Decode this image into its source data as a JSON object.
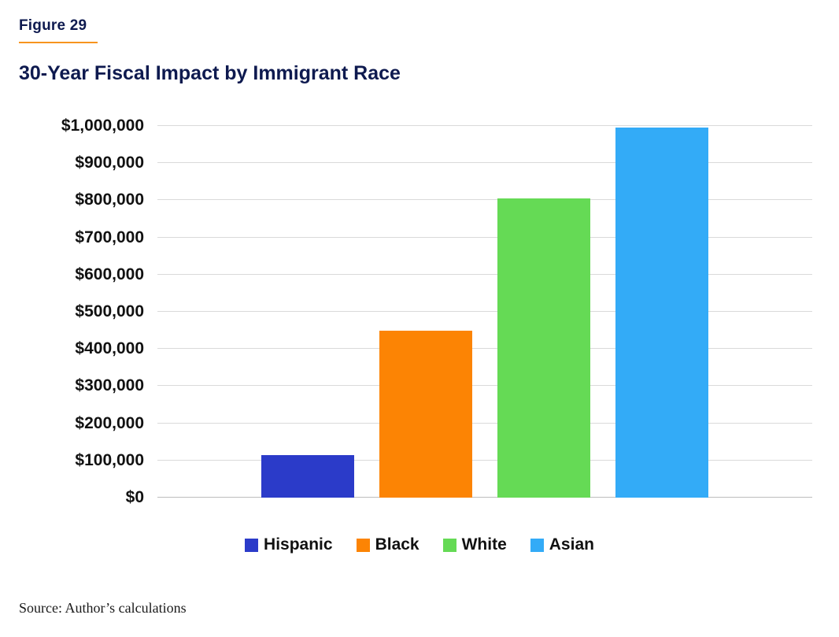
{
  "figure": {
    "label": "Figure 29",
    "title": "30-Year Fiscal Impact by Immigrant Race"
  },
  "source": "Source: Author’s calculations",
  "colors": {
    "heading_navy": "#0e1a4f",
    "accent_orange": "#f7941e",
    "gridline": "#dadada",
    "axis_line": "#bdbdbd"
  },
  "chart_data": {
    "type": "bar",
    "title": "30-Year Fiscal Impact by Immigrant Race",
    "categories": [
      "Hispanic",
      "Black",
      "White",
      "Asian"
    ],
    "values": [
      115000,
      450000,
      805000,
      995000
    ],
    "colors": [
      "#2b3bc9",
      "#fc8404",
      "#65da55",
      "#33abf7"
    ],
    "xlabel": "",
    "ylabel": "",
    "ylim": [
      0,
      1000000
    ],
    "ytick_values": [
      0,
      100000,
      200000,
      300000,
      400000,
      500000,
      600000,
      700000,
      800000,
      900000,
      1000000
    ],
    "ytick_labels": [
      "$0",
      "$100,000",
      "$200,000",
      "$300,000",
      "$400,000",
      "$500,000",
      "$600,000",
      "$700,000",
      "$800,000",
      "$900,000",
      "$1,000,000"
    ],
    "grid": true,
    "legend_position": "bottom"
  }
}
